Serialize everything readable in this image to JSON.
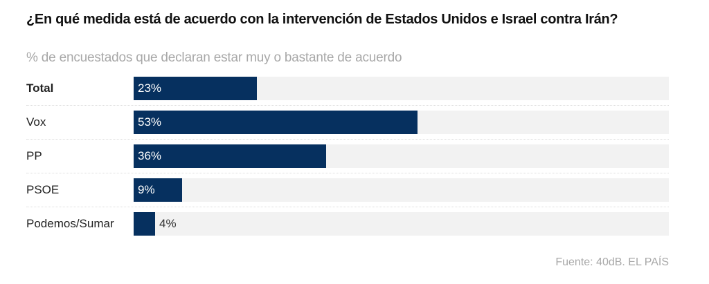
{
  "chart_data": {
    "type": "bar",
    "orientation": "horizontal",
    "title": "¿En qué medida está de acuerdo con la intervención de Estados Unidos e Israel contra Irán?",
    "subtitle": "% de encuestados que declaran estar muy o bastante de acuerdo",
    "categories": [
      "Total",
      "Vox",
      "PP",
      "PSOE",
      "Podemos/Sumar"
    ],
    "values": [
      23,
      53,
      36,
      9,
      4
    ],
    "value_labels": [
      "23%",
      "53%",
      "36%",
      "9%",
      "4%"
    ],
    "xlim": [
      0,
      100
    ],
    "source": "Fuente: 40dB. EL PAÍS",
    "colors": {
      "bar": "#06305f",
      "track": "#f2f2f2"
    }
  }
}
